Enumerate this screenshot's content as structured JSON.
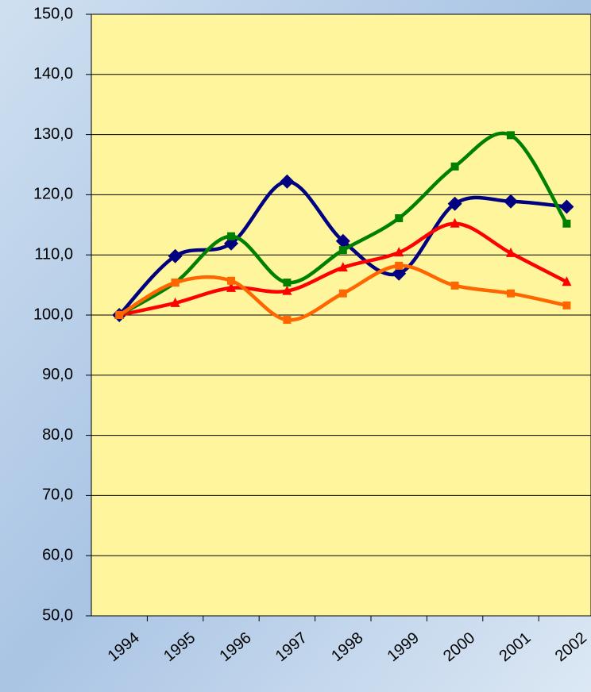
{
  "chart_data": {
    "type": "line",
    "categories": [
      "1994",
      "1995",
      "1996",
      "1997",
      "1998",
      "1999",
      "2000",
      "2001",
      "2002"
    ],
    "series": [
      {
        "color": "#000080",
        "marker": "diamond",
        "values": [
          100,
          109.8,
          111.9,
          122.2,
          112.3,
          106.9,
          118.5,
          118.9,
          118.0
        ]
      },
      {
        "color": "#ff0000",
        "marker": "triangle",
        "values": [
          100,
          102.0,
          104.5,
          104.0,
          107.9,
          110.4,
          115.2,
          110.3,
          105.5
        ]
      },
      {
        "color": "#008000",
        "marker": "square",
        "values": [
          100,
          105.4,
          113.1,
          105.4,
          110.8,
          116.1,
          124.7,
          129.9,
          115.2
        ]
      },
      {
        "color": "#ff6600",
        "marker": "square",
        "values": [
          100,
          105.4,
          105.7,
          99.2,
          103.6,
          108.2,
          104.9,
          103.6,
          101.6
        ]
      }
    ],
    "ylim": [
      50,
      150
    ],
    "yticks": [
      {
        "value": 50,
        "label": "50,0"
      },
      {
        "value": 60,
        "label": "60,0"
      },
      {
        "value": 70,
        "label": "70,0"
      },
      {
        "value": 80,
        "label": "80,0"
      },
      {
        "value": 90,
        "label": "90,0"
      },
      {
        "value": 100,
        "label": "100,0"
      },
      {
        "value": 110,
        "label": "110,0"
      },
      {
        "value": 120,
        "label": "120,0"
      },
      {
        "value": 130,
        "label": "130,0"
      },
      {
        "value": 140,
        "label": "140,0"
      },
      {
        "value": 150,
        "label": "150,0"
      }
    ],
    "grid": true,
    "plot_color": "#fff59d"
  }
}
